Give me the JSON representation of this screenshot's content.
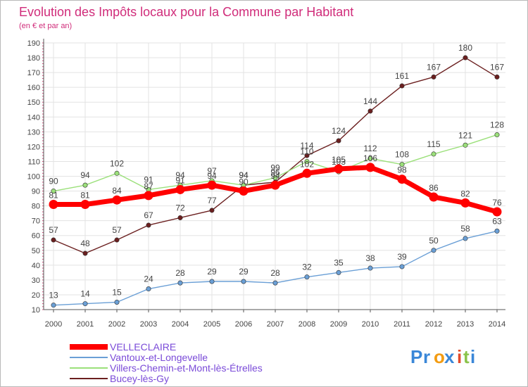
{
  "chart_data": {
    "type": "line",
    "title": "Evolution des Impôts locaux pour la Commune par Habitant",
    "subtitle": "(en € et par an)",
    "xlabel": "",
    "ylabel": "",
    "x": [
      "2000",
      "2001",
      "2002",
      "2003",
      "2004",
      "2005",
      "2006",
      "2007",
      "2008",
      "2009",
      "2010",
      "2011",
      "2012",
      "2013",
      "2014"
    ],
    "yticks": [
      10,
      20,
      30,
      40,
      50,
      60,
      70,
      80,
      90,
      100,
      110,
      120,
      130,
      140,
      150,
      160,
      170,
      180,
      190
    ],
    "ylim": [
      10,
      190
    ],
    "grid": true,
    "series": [
      {
        "name": "VELLECLAIRE",
        "color": "#ff0000",
        "values": [
          81,
          81,
          84,
          87,
          91,
          94,
          90,
          94,
          102,
          105,
          106,
          98,
          86,
          82,
          76
        ]
      },
      {
        "name": "Vantoux-et-Longevelle",
        "color": "#6a9fd6",
        "values": [
          13,
          14,
          15,
          24,
          28,
          29,
          29,
          28,
          32,
          35,
          38,
          39,
          50,
          58,
          63
        ]
      },
      {
        "name": "Villers-Chemin-et-Mont-lès-Étrelles",
        "color": "#9be07a",
        "values": [
          90,
          94,
          102,
          91,
          94,
          97,
          94,
          99,
          110,
          103,
          112,
          108,
          115,
          121,
          128
        ]
      },
      {
        "name": "Bucey-lès-Gy",
        "color": "#6b1f1f",
        "values": [
          57,
          48,
          57,
          67,
          72,
          77,
          94,
          96,
          114,
          124,
          144,
          161,
          167,
          180,
          167
        ]
      }
    ],
    "legend_position": "bottom-left"
  },
  "brand": {
    "text": "Proxiti",
    "letters": [
      "P",
      "r",
      "o",
      "x",
      "i",
      "t",
      "i"
    ],
    "colors": [
      "#3a87d8",
      "#3a87d8",
      "#f39c12",
      "#3a87d8",
      "#e24a2b",
      "#8bc34a",
      "#3a87d8"
    ]
  },
  "colors": {
    "title": "#d02c7a",
    "axis": "#555555",
    "grid": "#e3e3e3",
    "label": "#444444"
  }
}
